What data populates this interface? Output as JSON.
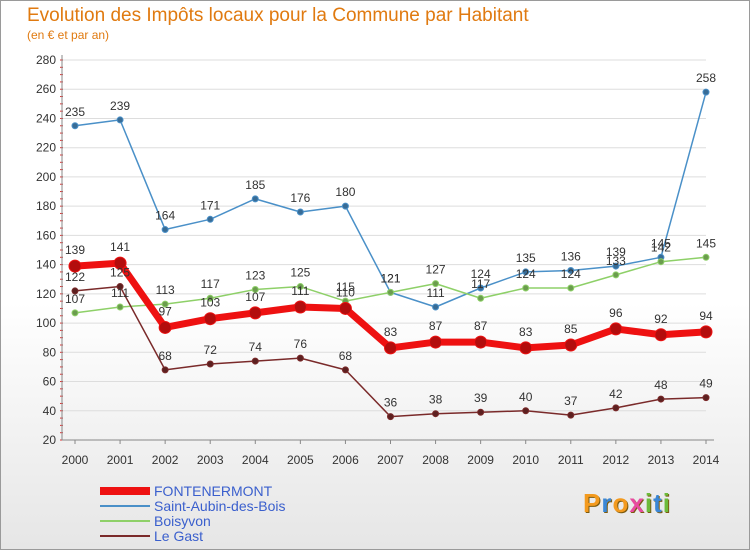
{
  "chart_data": {
    "type": "line",
    "title": "Evolution des Impôts locaux pour la Commune par Habitant",
    "subtitle": "(en € et par an)",
    "x": [
      "2000",
      "2001",
      "2002",
      "2003",
      "2004",
      "2005",
      "2006",
      "2007",
      "2008",
      "2009",
      "2010",
      "2011",
      "2012",
      "2013",
      "2014"
    ],
    "ylim": [
      20,
      280
    ],
    "yticks": [
      20,
      40,
      60,
      80,
      100,
      120,
      140,
      160,
      180,
      200,
      220,
      240,
      260,
      280
    ],
    "series": [
      {
        "name": "Saint-Aubin-des-Bois",
        "color": "#4a90c8",
        "values": [
          235,
          239,
          164,
          171,
          185,
          176,
          180,
          121,
          111,
          124,
          135,
          136,
          139,
          145,
          258
        ]
      },
      {
        "name": "Boisyvon",
        "color": "#8ed068",
        "values": [
          107,
          111,
          113,
          117,
          123,
          125,
          115,
          121,
          127,
          117,
          124,
          124,
          133,
          142,
          145
        ]
      },
      {
        "name": "Le Gast",
        "color": "#7a2a2a",
        "values": [
          122,
          125,
          68,
          72,
          74,
          76,
          68,
          36,
          38,
          39,
          40,
          37,
          42,
          48,
          49
        ]
      },
      {
        "name": "FONTENERMONT",
        "color": "#ee1111",
        "values": [
          139,
          141,
          97,
          103,
          107,
          111,
          110,
          83,
          87,
          87,
          83,
          85,
          96,
          92,
          94
        ]
      }
    ],
    "legend_order": [
      "FONTENERMONT",
      "Saint-Aubin-des-Bois",
      "Boisyvon",
      "Le Gast"
    ]
  },
  "logo": {
    "text": "Proxiti",
    "letters": [
      "P",
      "r",
      "o",
      "x",
      "i",
      "t",
      "i"
    ],
    "colors": [
      "#f39a1e",
      "#3a87d6",
      "#f39a1e",
      "#e84aa0",
      "#6dbb3a",
      "#3a87d6",
      "#6dbb3a"
    ]
  }
}
